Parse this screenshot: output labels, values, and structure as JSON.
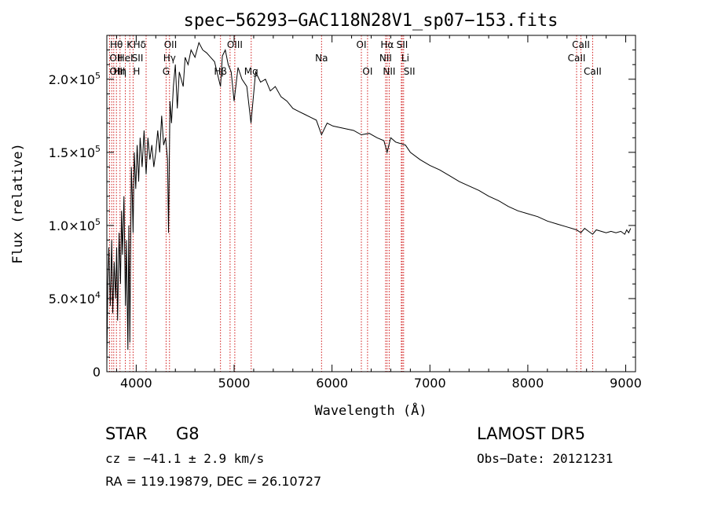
{
  "chart_data": {
    "type": "line",
    "title": "spec−56293−GAC118N28V1_sp07−153.fits",
    "xlabel": "Wavelength (Å)",
    "ylabel": "Flux (relative)",
    "xlim": [
      3700,
      9100
    ],
    "ylim": [
      0,
      230000
    ],
    "x_ticks": [
      4000,
      5000,
      6000,
      7000,
      8000,
      9000
    ],
    "y_ticks": [
      {
        "value": 0,
        "label": "0"
      },
      {
        "value": 50000,
        "label": "5.0×10",
        "exp": "4"
      },
      {
        "value": 100000,
        "label": "1.0×10",
        "exp": "5"
      },
      {
        "value": 150000,
        "label": "1.5×10",
        "exp": "5"
      },
      {
        "value": 200000,
        "label": "2.0×10",
        "exp": "5"
      }
    ],
    "spectrum": {
      "x": [
        3700,
        3710,
        3720,
        3735,
        3750,
        3760,
        3775,
        3790,
        3800,
        3810,
        3825,
        3840,
        3850,
        3860,
        3875,
        3890,
        3900,
        3915,
        3925,
        3935,
        3950,
        3960,
        3968,
        3980,
        3995,
        4010,
        4025,
        4040,
        4060,
        4080,
        4101,
        4120,
        4140,
        4160,
        4180,
        4200,
        4220,
        4240,
        4260,
        4280,
        4300,
        4320,
        4330,
        4345,
        4360,
        4380,
        4400,
        4420,
        4440,
        4460,
        4480,
        4500,
        4530,
        4560,
        4600,
        4640,
        4680,
        4720,
        4760,
        4800,
        4861,
        4880,
        4910,
        4940,
        4970,
        5000,
        5040,
        5080,
        5130,
        5172,
        5220,
        5270,
        5320,
        5370,
        5420,
        5480,
        5540,
        5600,
        5660,
        5720,
        5780,
        5840,
        5893,
        5950,
        6010,
        6080,
        6150,
        6220,
        6300,
        6380,
        6460,
        6530,
        6563,
        6600,
        6650,
        6700,
        6750,
        6800,
        6900,
        7000,
        7100,
        7200,
        7300,
        7400,
        7500,
        7600,
        7700,
        7800,
        7900,
        8000,
        8100,
        8200,
        8300,
        8400,
        8498,
        8542,
        8580,
        8620,
        8662,
        8700,
        8750,
        8800,
        8850,
        8900,
        8950,
        8990,
        9010,
        9030,
        9050
      ],
      "y": [
        5000,
        60000,
        85000,
        45000,
        90000,
        40000,
        75000,
        50000,
        85000,
        35000,
        95000,
        60000,
        110000,
        80000,
        120000,
        45000,
        90000,
        15000,
        100000,
        20000,
        140000,
        120000,
        95000,
        150000,
        125000,
        155000,
        130000,
        160000,
        140000,
        165000,
        135000,
        160000,
        145000,
        155000,
        140000,
        150000,
        165000,
        150000,
        175000,
        155000,
        160000,
        145000,
        95000,
        185000,
        170000,
        195000,
        210000,
        180000,
        205000,
        200000,
        195000,
        215000,
        210000,
        220000,
        215000,
        225000,
        220000,
        218000,
        215000,
        212000,
        195000,
        216000,
        220000,
        210000,
        205000,
        185000,
        208000,
        200000,
        195000,
        170000,
        205000,
        198000,
        200000,
        192000,
        195000,
        188000,
        185000,
        180000,
        178000,
        176000,
        174000,
        172000,
        162000,
        170000,
        168000,
        167000,
        166000,
        165000,
        162000,
        163000,
        160000,
        158000,
        150000,
        160000,
        157000,
        156000,
        155000,
        150000,
        145000,
        141000,
        138000,
        134000,
        130000,
        127000,
        124000,
        120000,
        117000,
        113000,
        110000,
        108000,
        106000,
        103000,
        101000,
        99000,
        97000,
        95000,
        98000,
        96000,
        94000,
        97000,
        96000,
        95000,
        96000,
        95000,
        96000,
        94000,
        97000,
        95000,
        98000
      ]
    },
    "line_markers": [
      {
        "label": "Hθ",
        "x": 3798,
        "row": 0,
        "anchor": "middle"
      },
      {
        "label": "K",
        "x": 3934,
        "row": 0,
        "anchor": "middle"
      },
      {
        "label": "Hδ",
        "x": 4101,
        "row": 0,
        "anchor": "end"
      },
      {
        "label": "OII",
        "x": 4350,
        "row": 0,
        "anchor": "middle"
      },
      {
        "label": "OIII",
        "x": 5007,
        "row": 0,
        "anchor": "middle"
      },
      {
        "label": "OI",
        "x": 6300,
        "row": 0,
        "anchor": "middle"
      },
      {
        "label": "Hα",
        "x": 6563,
        "row": 0,
        "anchor": "middle"
      },
      {
        "label": "SII",
        "x": 6717,
        "row": 0,
        "anchor": "middle"
      },
      {
        "label": "CaII",
        "x": 8542,
        "row": 0,
        "anchor": "middle"
      },
      {
        "label": "OII",
        "x": 3727,
        "row": 1,
        "anchor": "start"
      },
      {
        "label": "HeI",
        "x": 3889,
        "row": 1,
        "anchor": "middle"
      },
      {
        "label": "SII",
        "x": 4072,
        "row": 1,
        "anchor": "end"
      },
      {
        "label": "Hγ",
        "x": 4340,
        "row": 1,
        "anchor": "middle"
      },
      {
        "label": "Na",
        "x": 5893,
        "row": 1,
        "anchor": "middle"
      },
      {
        "label": "NII",
        "x": 6548,
        "row": 1,
        "anchor": "middle"
      },
      {
        "label": "Li",
        "x": 6708,
        "row": 1,
        "anchor": "start"
      },
      {
        "label": "CaII",
        "x": 8498,
        "row": 1,
        "anchor": "middle"
      },
      {
        "label": "OIII",
        "x": 3727,
        "row": 2,
        "anchor": "start"
      },
      {
        "label": "Hη",
        "x": 3835,
        "row": 2,
        "anchor": "middle"
      },
      {
        "label": "H",
        "x": 3968,
        "row": 2,
        "anchor": "start"
      },
      {
        "label": "G",
        "x": 4305,
        "row": 2,
        "anchor": "middle"
      },
      {
        "label": "Hβ",
        "x": 4861,
        "row": 2,
        "anchor": "middle"
      },
      {
        "label": "Mg",
        "x": 5175,
        "row": 2,
        "anchor": "middle"
      },
      {
        "label": "OI",
        "x": 6363,
        "row": 2,
        "anchor": "middle"
      },
      {
        "label": "NII",
        "x": 6584,
        "row": 2,
        "anchor": "middle"
      },
      {
        "label": "SII",
        "x": 6731,
        "row": 2,
        "anchor": "start"
      },
      {
        "label": "CaII",
        "x": 8662,
        "row": 2,
        "anchor": "middle"
      }
    ],
    "line_positions": [
      3727,
      3750,
      3771,
      3798,
      3835,
      3889,
      3934,
      3968,
      4101,
      4305,
      4340,
      4861,
      4959,
      5007,
      5175,
      5893,
      6300,
      6363,
      6548,
      6563,
      6584,
      6708,
      6717,
      6731,
      8498,
      8542,
      8662
    ]
  },
  "info": {
    "class_label": "STAR",
    "subclass": "G8",
    "survey": "LAMOST  DR5",
    "cz_text": "cz = −41.1 ± 2.9 km/s",
    "obs_date": "Obs−Date: 20121231",
    "coords": "RA = 119.19879, DEC =  26.10727"
  },
  "colors": {
    "axis": "#000000",
    "spectrum": "#000000",
    "line_marker": "#cc0000"
  }
}
